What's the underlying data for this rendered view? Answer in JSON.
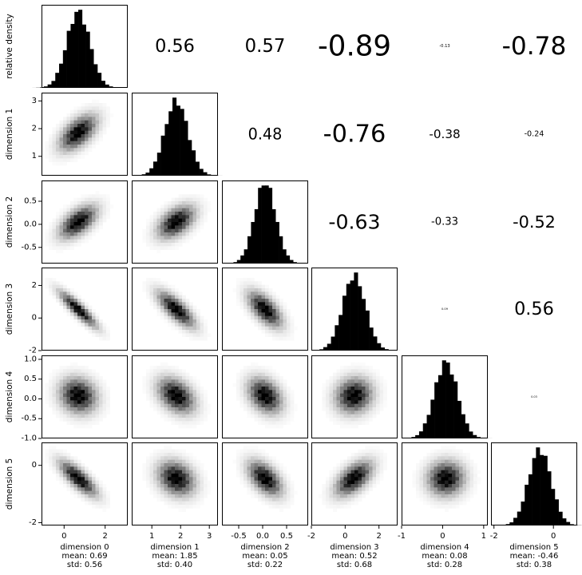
{
  "chart_data": {
    "type": "corner",
    "diagonal_type": "histogram",
    "lower_type": "heatmap",
    "upper_type": "correlation-text",
    "diagonal_ylabel": "relative density",
    "dimensions": [
      {
        "label": "dimension 0",
        "mean_text": "mean: 0.69",
        "std_text": "std: 0.56",
        "mean": 0.69,
        "std": 0.56,
        "range": [
          -1.1,
          3.1
        ],
        "ticks": [
          "0",
          "2"
        ],
        "tick_values": [
          0,
          2
        ]
      },
      {
        "label": "dimension 1",
        "mean_text": "mean: 1.85",
        "std_text": "std: 0.40",
        "mean": 1.85,
        "std": 0.4,
        "range": [
          0.3,
          3.3
        ],
        "ticks": [
          "1",
          "2",
          "3"
        ],
        "tick_values": [
          1,
          2,
          3
        ]
      },
      {
        "label": "dimension 2",
        "mean_text": "mean: 0.05",
        "std_text": "std: 0.22",
        "mean": 0.05,
        "std": 0.22,
        "range": [
          -0.85,
          0.95
        ],
        "ticks": [
          "-0.5",
          "0.0",
          "0.5"
        ],
        "tick_values": [
          -0.5,
          0,
          0.5
        ]
      },
      {
        "label": "dimension 3",
        "mean_text": "mean: 0.52",
        "std_text": "std: 0.68",
        "mean": 0.52,
        "std": 0.68,
        "range": [
          -2.0,
          3.1
        ],
        "ticks": [
          "-2",
          "0",
          "2"
        ],
        "tick_values": [
          -2,
          0,
          2
        ]
      },
      {
        "label": "dimension 4",
        "mean_text": "mean: 0.08",
        "std_text": "std: 0.28",
        "mean": 0.08,
        "std": 0.28,
        "range": [
          -1.0,
          1.1
        ],
        "ticks": [
          "-1.0",
          "-0.5",
          "0.0",
          "0.5",
          "1.0"
        ],
        "tick_values": [
          -1.0,
          -0.5,
          0,
          0.5,
          1.0
        ]
      },
      {
        "label": "dimension 5",
        "mean_text": "mean: -0.46",
        "std_text": "std: 0.38",
        "mean": -0.46,
        "std": 0.38,
        "range": [
          -2.1,
          0.8
        ],
        "ticks": [
          "-2",
          "0"
        ],
        "tick_values": [
          -2,
          0
        ]
      }
    ],
    "x_ticks": [
      {
        "labels": [
          "0",
          "2"
        ],
        "values": [
          0,
          2
        ]
      },
      {
        "labels": [
          "1",
          "2",
          "3"
        ],
        "values": [
          1,
          2,
          3
        ]
      },
      {
        "labels": [
          "-0.5",
          "0.0",
          "0.5"
        ],
        "values": [
          -0.5,
          0,
          0.5
        ]
      },
      {
        "labels": [
          "-2",
          "0",
          "2"
        ],
        "values": [
          -2,
          0,
          2
        ]
      },
      {
        "labels": [
          "-1",
          "0",
          "1"
        ],
        "values": [
          -1,
          0,
          1
        ]
      },
      {
        "labels": [
          "-2",
          "0"
        ],
        "values": [
          -2,
          0
        ]
      }
    ],
    "correlations": [
      {
        "row": 0,
        "col": 1,
        "value": 0.56,
        "text": "0.56"
      },
      {
        "row": 0,
        "col": 2,
        "value": 0.57,
        "text": "0.57"
      },
      {
        "row": 0,
        "col": 3,
        "value": -0.89,
        "text": "-0.89"
      },
      {
        "row": 0,
        "col": 4,
        "value": -0.13,
        "text": "-0.13"
      },
      {
        "row": 0,
        "col": 5,
        "value": -0.78,
        "text": "-0.78"
      },
      {
        "row": 1,
        "col": 2,
        "value": 0.48,
        "text": "0.48"
      },
      {
        "row": 1,
        "col": 3,
        "value": -0.76,
        "text": "-0.76"
      },
      {
        "row": 1,
        "col": 4,
        "value": -0.38,
        "text": "-0.38"
      },
      {
        "row": 1,
        "col": 5,
        "value": -0.24,
        "text": "-0.24"
      },
      {
        "row": 2,
        "col": 3,
        "value": -0.63,
        "text": "-0.63"
      },
      {
        "row": 2,
        "col": 4,
        "value": -0.33,
        "text": "-0.33"
      },
      {
        "row": 2,
        "col": 5,
        "value": -0.52,
        "text": "-0.52"
      },
      {
        "row": 3,
        "col": 4,
        "value": 0.09,
        "text": "0.09"
      },
      {
        "row": 3,
        "col": 5,
        "value": 0.56,
        "text": "0.56"
      },
      {
        "row": 4,
        "col": 5,
        "value": 0.03,
        "text": "0.03"
      }
    ],
    "colors": {
      "histogram": "#000000",
      "heatmap_high": "#000000",
      "heatmap_low": "#ffffff",
      "frame": "#000000",
      "background": "#ffffff"
    }
  }
}
